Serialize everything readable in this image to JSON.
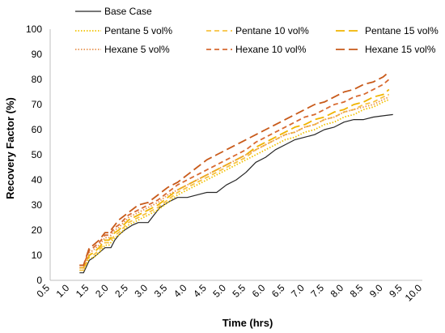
{
  "chart_data": {
    "type": "line",
    "title": "",
    "xlabel": "Time (hrs)",
    "ylabel": "Recovery Factor (%)",
    "xlim": [
      0.5,
      10.0
    ],
    "ylim": [
      0,
      100
    ],
    "x_ticks": [
      "0.5",
      "1.0",
      "1.5",
      "2.0",
      "2.5",
      "3.0",
      "3.5",
      "4.0",
      "4.5",
      "5.0",
      "5.5",
      "6.0",
      "6.5",
      "7.0",
      "7.5",
      "8.0",
      "8.5",
      "9.0",
      "9.5",
      "10.0"
    ],
    "y_ticks": [
      "0",
      "10",
      "20",
      "30",
      "40",
      "50",
      "60",
      "70",
      "80",
      "90",
      "100"
    ],
    "grid": false,
    "legend_position": "top",
    "series": [
      {
        "name": "Base Case",
        "color": "#262626",
        "dash": "solid",
        "x": [
          1.25,
          1.35,
          1.5,
          1.6,
          1.75,
          1.9,
          2.05,
          2.15,
          2.25,
          2.4,
          2.5,
          2.6,
          2.75,
          3.0,
          3.15,
          3.3,
          3.5,
          3.75,
          4.0,
          4.25,
          4.5,
          4.75,
          5.0,
          5.25,
          5.5,
          5.75,
          6.0,
          6.25,
          6.5,
          6.75,
          7.0,
          7.25,
          7.5,
          7.75,
          8.0,
          8.25,
          8.5,
          8.75,
          9.0,
          9.25
        ],
        "y": [
          3,
          3,
          8,
          9,
          11,
          13,
          13,
          16,
          18,
          20,
          21,
          22,
          23,
          23,
          26,
          29,
          31,
          33,
          33,
          34,
          35,
          35,
          38,
          40,
          43,
          47,
          49,
          52,
          54,
          56,
          57,
          58,
          60,
          61,
          63,
          64,
          64,
          65,
          65.5,
          66
        ]
      },
      {
        "name": "Pentane 5 vol%",
        "color": "#f2c200",
        "dash": "dotted",
        "x": [
          1.25,
          1.35,
          1.5,
          1.6,
          1.75,
          1.9,
          2.0,
          2.15,
          2.25,
          2.5,
          2.75,
          3.0,
          3.25,
          3.5,
          3.75,
          4.0,
          4.25,
          4.5,
          4.75,
          5.0,
          5.25,
          5.5,
          5.75,
          6.0,
          6.25,
          6.5,
          6.75,
          7.0,
          7.25,
          7.5,
          7.75,
          8.0,
          8.25,
          8.5,
          8.75,
          9.0,
          9.15
        ],
        "y": [
          4,
          4,
          9,
          9,
          11,
          14,
          14,
          17,
          18,
          22,
          24,
          26,
          28,
          31,
          34,
          36,
          38,
          40,
          42,
          44,
          46,
          48,
          50,
          52,
          54,
          56,
          57,
          59,
          60,
          62,
          63,
          65,
          66,
          68,
          69,
          71,
          72
        ]
      },
      {
        "name": "Pentane 10 vol%",
        "color": "#f7c242",
        "dash": "dashed",
        "x": [
          1.25,
          1.35,
          1.5,
          1.6,
          1.75,
          1.9,
          2.0,
          2.15,
          2.25,
          2.5,
          2.75,
          3.0,
          3.25,
          3.5,
          3.75,
          4.0,
          4.25,
          4.5,
          4.75,
          5.0,
          5.25,
          5.5,
          5.75,
          6.0,
          6.25,
          6.5,
          6.75,
          7.0,
          7.25,
          7.5,
          7.75,
          8.0,
          8.25,
          8.5,
          8.75,
          9.0,
          9.15
        ],
        "y": [
          4,
          4,
          10,
          10,
          12,
          15,
          15,
          18,
          19,
          23,
          25,
          27,
          29,
          32,
          35,
          37,
          39,
          41,
          43,
          45,
          47,
          49,
          52,
          54,
          56,
          58,
          59,
          61,
          62,
          64,
          65,
          67,
          68,
          70,
          71,
          73,
          74
        ]
      },
      {
        "name": "Pentane 15 vol%",
        "color": "#f0b400",
        "dash": "longdash",
        "x": [
          1.25,
          1.35,
          1.5,
          1.6,
          1.75,
          1.9,
          2.0,
          2.15,
          2.25,
          2.5,
          2.75,
          3.0,
          3.25,
          3.5,
          3.75,
          4.0,
          4.25,
          4.5,
          4.75,
          5.0,
          5.25,
          5.5,
          5.75,
          6.0,
          6.25,
          6.5,
          6.75,
          7.0,
          7.25,
          7.5,
          7.75,
          8.0,
          8.25,
          8.5,
          8.75,
          9.0,
          9.15
        ],
        "y": [
          5,
          5,
          10,
          11,
          13,
          16,
          16,
          19,
          20,
          24,
          26,
          28,
          30,
          33,
          36,
          38,
          40,
          42,
          44,
          46,
          48,
          50,
          53,
          55,
          57,
          59,
          61,
          62,
          64,
          65,
          67,
          68,
          70,
          71,
          73,
          74,
          76
        ]
      },
      {
        "name": "Hexane 5 vol%",
        "color": "#e89450",
        "dash": "dotted",
        "x": [
          1.25,
          1.35,
          1.5,
          1.6,
          1.75,
          1.9,
          2.0,
          2.15,
          2.25,
          2.5,
          2.75,
          3.0,
          3.25,
          3.5,
          3.75,
          4.0,
          4.25,
          4.5,
          4.75,
          5.0,
          5.25,
          5.5,
          5.75,
          6.0,
          6.25,
          6.5,
          6.75,
          7.0,
          7.25,
          7.5,
          7.75,
          8.0,
          8.25,
          8.5,
          8.75,
          9.0,
          9.15
        ],
        "y": [
          5,
          5,
          11,
          12,
          14,
          17,
          17,
          20,
          21,
          25,
          27,
          29,
          31,
          34,
          36,
          38,
          40,
          42,
          44,
          46,
          48,
          50,
          52,
          54,
          56,
          58,
          59,
          61,
          62,
          64,
          65,
          67,
          68,
          69,
          70,
          72,
          73
        ]
      },
      {
        "name": "Hexane 10 vol%",
        "color": "#d86a30",
        "dash": "dashed",
        "x": [
          1.25,
          1.35,
          1.5,
          1.6,
          1.75,
          1.9,
          2.0,
          2.15,
          2.25,
          2.5,
          2.75,
          3.0,
          3.25,
          3.5,
          3.75,
          4.0,
          4.25,
          4.5,
          4.75,
          5.0,
          5.25,
          5.5,
          5.75,
          6.0,
          6.25,
          6.5,
          6.75,
          7.0,
          7.25,
          7.5,
          7.75,
          8.0,
          8.25,
          8.5,
          8.75,
          9.0,
          9.15
        ],
        "y": [
          6,
          6,
          12,
          13,
          15,
          18,
          18,
          21,
          22,
          26,
          28,
          30,
          32,
          35,
          38,
          40,
          42,
          44,
          46,
          48,
          50,
          52,
          55,
          57,
          59,
          61,
          63,
          65,
          66,
          68,
          70,
          71,
          73,
          74,
          76,
          78,
          80
        ]
      },
      {
        "name": "Hexane 15 vol%",
        "color": "#c85a1a",
        "dash": "longdash",
        "x": [
          1.25,
          1.35,
          1.5,
          1.6,
          1.75,
          1.9,
          2.0,
          2.15,
          2.25,
          2.5,
          2.75,
          3.0,
          3.25,
          3.5,
          3.75,
          4.0,
          4.25,
          4.5,
          4.75,
          5.0,
          5.25,
          5.5,
          5.75,
          6.0,
          6.25,
          6.5,
          6.75,
          7.0,
          7.25,
          7.5,
          7.75,
          8.0,
          8.25,
          8.5,
          8.75,
          9.0,
          9.15
        ],
        "y": [
          6,
          6,
          13,
          14,
          16,
          19,
          19,
          22,
          24,
          27,
          30,
          31,
          34,
          37,
          39,
          42,
          45,
          48,
          50,
          52,
          54,
          56,
          58,
          60,
          62,
          64,
          66,
          68,
          70,
          71,
          73,
          75,
          76,
          78,
          79,
          81,
          83
        ]
      }
    ]
  }
}
